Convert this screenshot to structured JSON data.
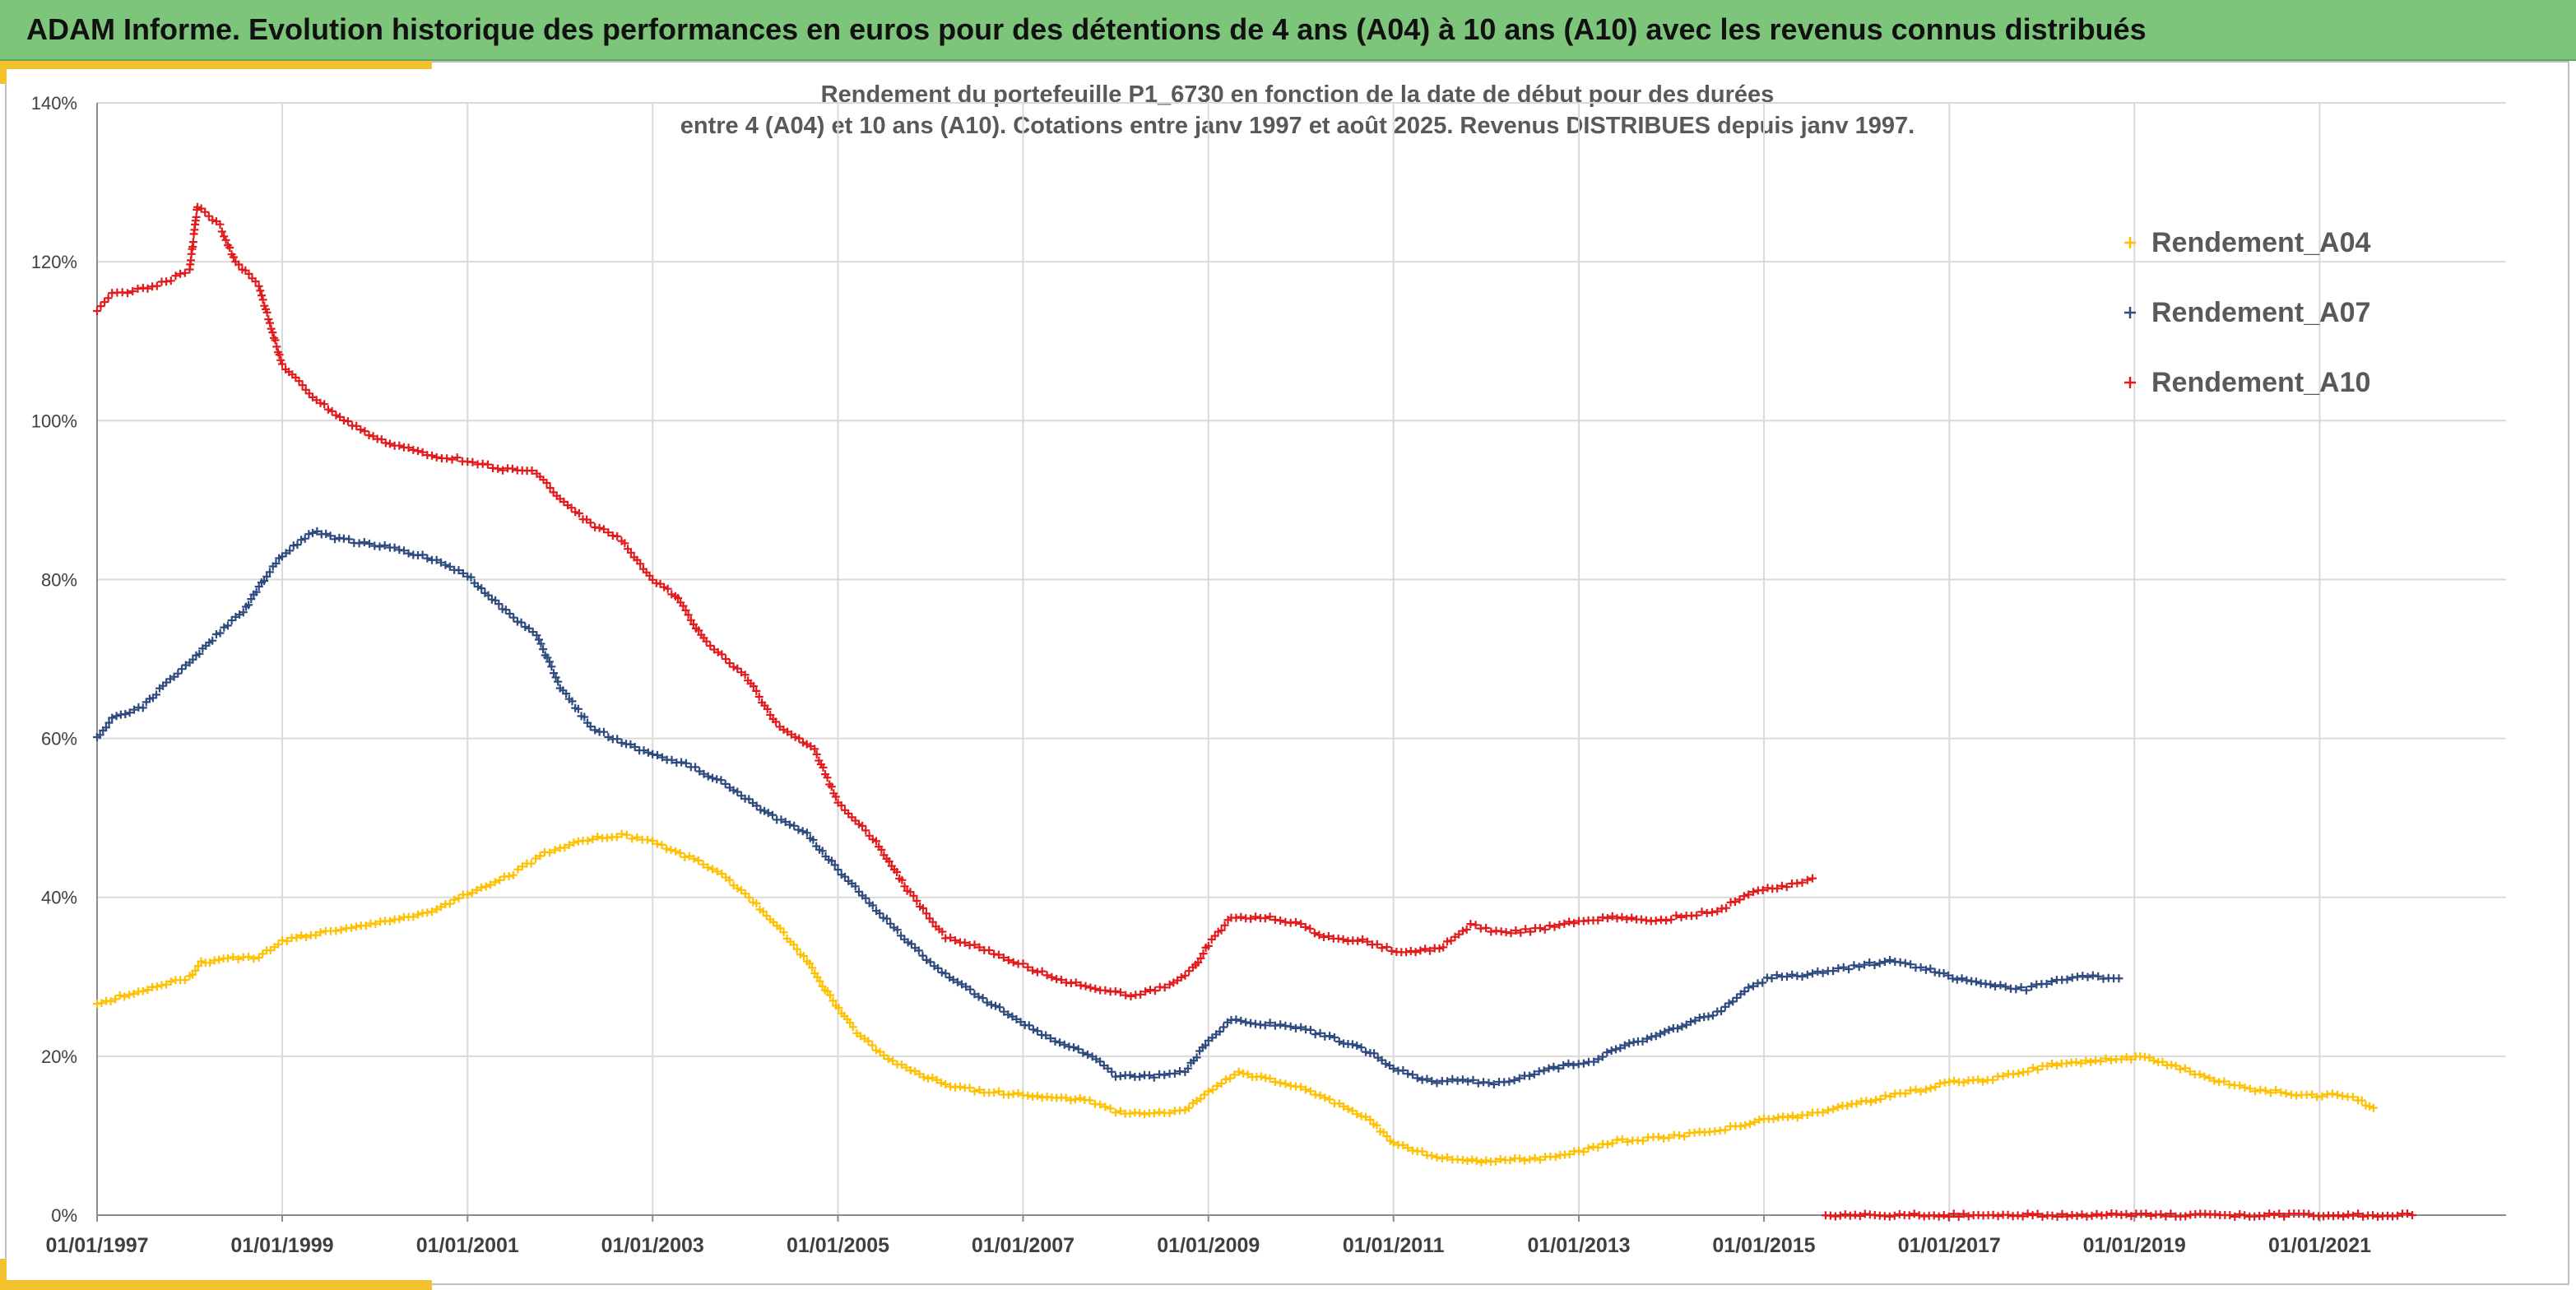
{
  "header": {
    "title": "ADAM Informe. Evolution historique des performances en euros pour des détentions de 4 ans (A04) à 10 ans (A10) avec les revenus connus distribués"
  },
  "colors": {
    "header_bg": "#7dc57a",
    "accent": "#f2c12e",
    "grid": "#d9d9d9",
    "axis": "#8c8c8c"
  },
  "chart_data": {
    "type": "scatter",
    "title_line1": "Rendement du portefeuille P1_6730 en fonction de la date de début pour des durées",
    "title_line2": "entre 4 (A04) et 10 ans (A10). Cotations entre janv 1997 et août 2025. Revenus DISTRIBUES depuis janv 1997.",
    "xlabel": "",
    "ylabel": "",
    "x_range": [
      "1997-01-01",
      "2022-01-01"
    ],
    "x_ticks": [
      "01/01/1997",
      "01/01/1999",
      "01/01/2001",
      "01/01/2003",
      "01/01/2005",
      "01/01/2007",
      "01/01/2009",
      "01/01/2011",
      "01/01/2013",
      "01/01/2015",
      "01/01/2017",
      "01/01/2019",
      "01/01/2021"
    ],
    "y_range": [
      0,
      140
    ],
    "y_ticks": [
      "0%",
      "20%",
      "40%",
      "60%",
      "80%",
      "100%",
      "120%",
      "140%"
    ],
    "grid": true,
    "legend_position": "top-right",
    "marker": "+",
    "series": [
      {
        "name": "Rendement_A04",
        "color": "#ffc000",
        "points": [
          [
            "1997-01-01",
            26.5
          ],
          [
            "1997-04-01",
            27.5
          ],
          [
            "1997-07-01",
            28.3
          ],
          [
            "1997-10-01",
            29.0
          ],
          [
            "1998-01-01",
            30.0
          ],
          [
            "1998-02-15",
            31.8
          ],
          [
            "1998-06-01",
            32.3
          ],
          [
            "1998-10-01",
            32.5
          ],
          [
            "1999-01-01",
            34.5
          ],
          [
            "1999-06-01",
            35.5
          ],
          [
            "1999-10-01",
            36.3
          ],
          [
            "2000-03-01",
            37.0
          ],
          [
            "2000-09-01",
            38.5
          ],
          [
            "2001-01-01",
            40.5
          ],
          [
            "2001-07-01",
            43.0
          ],
          [
            "2001-11-01",
            45.5
          ],
          [
            "2002-01-01",
            46.0
          ],
          [
            "2002-04-01",
            47.2
          ],
          [
            "2002-09-01",
            47.8
          ],
          [
            "2003-01-01",
            47.0
          ],
          [
            "2003-07-01",
            44.5
          ],
          [
            "2003-10-01",
            43.0
          ],
          [
            "2004-02-01",
            39.5
          ],
          [
            "2004-06-01",
            35.5
          ],
          [
            "2004-09-01",
            32.0
          ],
          [
            "2004-12-01",
            27.5
          ],
          [
            "2005-03-01",
            23.5
          ],
          [
            "2005-07-01",
            20.0
          ],
          [
            "2005-11-01",
            18.0
          ],
          [
            "2006-03-01",
            16.5
          ],
          [
            "2006-08-01",
            15.5
          ],
          [
            "2007-01-01",
            15.2
          ],
          [
            "2007-06-01",
            14.7
          ],
          [
            "2007-09-01",
            14.6
          ],
          [
            "2007-11-01",
            13.8
          ],
          [
            "2008-01-01",
            13.0
          ],
          [
            "2008-06-01",
            12.8
          ],
          [
            "2008-10-01",
            13.2
          ],
          [
            "2009-01-01",
            15.5
          ],
          [
            "2009-05-01",
            18.0
          ],
          [
            "2009-09-01",
            17.0
          ],
          [
            "2010-01-01",
            16.0
          ],
          [
            "2010-06-01",
            14.0
          ],
          [
            "2010-10-01",
            12.0
          ],
          [
            "2011-01-01",
            9.0
          ],
          [
            "2011-06-01",
            7.5
          ],
          [
            "2011-10-01",
            7.0
          ],
          [
            "2012-01-01",
            6.8
          ],
          [
            "2012-06-01",
            7.0
          ],
          [
            "2012-10-01",
            7.3
          ],
          [
            "2013-01-01",
            8.0
          ],
          [
            "2013-06-01",
            9.3
          ],
          [
            "2013-10-01",
            9.6
          ],
          [
            "2014-02-01",
            10.0
          ],
          [
            "2014-06-01",
            10.5
          ],
          [
            "2014-10-01",
            11.3
          ],
          [
            "2015-01-01",
            12.0
          ],
          [
            "2015-06-01",
            12.5
          ],
          [
            "2015-10-01",
            13.3
          ],
          [
            "2016-01-01",
            14.0
          ],
          [
            "2016-06-01",
            15.2
          ],
          [
            "2016-10-01",
            15.8
          ],
          [
            "2017-01-01",
            16.8
          ],
          [
            "2017-06-01",
            17.0
          ],
          [
            "2017-10-01",
            18.0
          ],
          [
            "2018-03-01",
            19.0
          ],
          [
            "2018-08-01",
            19.5
          ],
          [
            "2018-12-01",
            19.8
          ],
          [
            "2019-03-01",
            19.8
          ],
          [
            "2019-07-01",
            18.5
          ],
          [
            "2019-12-01",
            16.8
          ],
          [
            "2020-04-01",
            15.8
          ],
          [
            "2020-08-01",
            15.5
          ],
          [
            "2020-12-01",
            15.0
          ],
          [
            "2021-04-01",
            15.2
          ],
          [
            "2021-06-01",
            14.5
          ],
          [
            "2021-08-01",
            13.5
          ]
        ]
      },
      {
        "name": "Rendement_A07",
        "color": "#2f4a7e",
        "points": [
          [
            "1997-01-01",
            60.0
          ],
          [
            "1997-03-01",
            62.5
          ],
          [
            "1997-07-01",
            64.0
          ],
          [
            "1997-10-01",
            67.0
          ],
          [
            "1998-01-01",
            69.5
          ],
          [
            "1998-04-01",
            72.5
          ],
          [
            "1998-08-01",
            76.0
          ],
          [
            "1998-11-01",
            80.5
          ],
          [
            "1999-01-01",
            83.0
          ],
          [
            "1999-05-01",
            86.0
          ],
          [
            "1999-09-01",
            85.0
          ],
          [
            "2000-03-01",
            84.0
          ],
          [
            "2000-09-01",
            82.5
          ],
          [
            "2001-01-01",
            80.5
          ],
          [
            "2001-06-01",
            76.0
          ],
          [
            "2001-10-01",
            73.0
          ],
          [
            "2002-01-01",
            66.5
          ],
          [
            "2002-05-01",
            61.5
          ],
          [
            "2002-09-01",
            59.5
          ],
          [
            "2003-01-01",
            58.0
          ],
          [
            "2003-06-01",
            56.5
          ],
          [
            "2003-11-01",
            54.0
          ],
          [
            "2004-04-01",
            50.5
          ],
          [
            "2004-09-01",
            48.0
          ],
          [
            "2005-01-01",
            43.5
          ],
          [
            "2005-06-01",
            38.5
          ],
          [
            "2005-11-01",
            33.5
          ],
          [
            "2006-04-01",
            29.5
          ],
          [
            "2006-10-01",
            26.0
          ],
          [
            "2007-04-01",
            22.5
          ],
          [
            "2007-10-01",
            20.0
          ],
          [
            "2008-01-01",
            17.5
          ],
          [
            "2008-06-01",
            17.5
          ],
          [
            "2008-10-01",
            18.0
          ],
          [
            "2009-01-01",
            22.0
          ],
          [
            "2009-04-01",
            24.5
          ],
          [
            "2009-09-01",
            24.0
          ],
          [
            "2010-01-01",
            23.5
          ],
          [
            "2010-06-01",
            22.0
          ],
          [
            "2010-10-01",
            20.5
          ],
          [
            "2011-01-01",
            18.5
          ],
          [
            "2011-06-01",
            16.8
          ],
          [
            "2011-10-01",
            17.0
          ],
          [
            "2012-02-01",
            16.5
          ],
          [
            "2012-06-01",
            17.5
          ],
          [
            "2012-11-01",
            18.8
          ],
          [
            "2013-03-01",
            19.5
          ],
          [
            "2013-07-01",
            21.5
          ],
          [
            "2013-11-01",
            22.5
          ],
          [
            "2014-03-01",
            24.0
          ],
          [
            "2014-07-01",
            25.5
          ],
          [
            "2014-11-01",
            28.5
          ],
          [
            "2015-02-01",
            30.0
          ],
          [
            "2015-06-01",
            30.2
          ],
          [
            "2015-10-01",
            30.8
          ],
          [
            "2016-02-01",
            31.5
          ],
          [
            "2016-06-01",
            32.0
          ],
          [
            "2016-10-01",
            31.0
          ],
          [
            "2017-02-01",
            29.8
          ],
          [
            "2017-07-01",
            28.8
          ],
          [
            "2017-11-01",
            28.5
          ],
          [
            "2018-03-01",
            29.5
          ],
          [
            "2018-07-01",
            30.0
          ],
          [
            "2018-11-01",
            29.8
          ]
        ]
      },
      {
        "name": "Rendement_A10",
        "color": "#e31a1c",
        "points": [
          [
            "1997-01-01",
            114.0
          ],
          [
            "1997-03-01",
            116.0
          ],
          [
            "1997-07-01",
            116.5
          ],
          [
            "1997-10-01",
            117.5
          ],
          [
            "1998-01-01",
            119.0
          ],
          [
            "1998-02-01",
            127.0
          ],
          [
            "1998-05-01",
            124.5
          ],
          [
            "1998-07-01",
            120.0
          ],
          [
            "1998-10-01",
            117.0
          ],
          [
            "1999-01-01",
            107.0
          ],
          [
            "1999-05-01",
            103.0
          ],
          [
            "1999-09-01",
            100.0
          ],
          [
            "2000-03-01",
            97.0
          ],
          [
            "2000-09-01",
            95.5
          ],
          [
            "2001-01-01",
            95.0
          ],
          [
            "2001-05-01",
            94.0
          ],
          [
            "2001-10-01",
            93.5
          ],
          [
            "2002-01-01",
            90.0
          ],
          [
            "2002-05-01",
            87.0
          ],
          [
            "2002-09-01",
            85.0
          ],
          [
            "2003-01-01",
            80.0
          ],
          [
            "2003-04-01",
            78.0
          ],
          [
            "2003-08-01",
            72.0
          ],
          [
            "2004-01-01",
            68.0
          ],
          [
            "2004-05-01",
            62.0
          ],
          [
            "2004-10-01",
            58.5
          ],
          [
            "2005-01-01",
            52.0
          ],
          [
            "2005-06-01",
            47.0
          ],
          [
            "2005-10-01",
            41.0
          ],
          [
            "2006-03-01",
            35.0
          ],
          [
            "2006-08-01",
            33.5
          ],
          [
            "2007-01-01",
            31.5
          ],
          [
            "2007-06-01",
            29.5
          ],
          [
            "2007-11-01",
            28.5
          ],
          [
            "2008-03-01",
            27.5
          ],
          [
            "2008-08-01",
            29.0
          ],
          [
            "2008-11-01",
            31.0
          ],
          [
            "2009-01-01",
            34.0
          ],
          [
            "2009-04-01",
            37.5
          ],
          [
            "2009-09-01",
            37.5
          ],
          [
            "2010-01-01",
            36.5
          ],
          [
            "2010-04-01",
            35.0
          ],
          [
            "2010-09-01",
            34.5
          ],
          [
            "2011-02-01",
            33.0
          ],
          [
            "2011-07-01",
            33.5
          ],
          [
            "2011-11-01",
            36.5
          ],
          [
            "2012-03-01",
            35.5
          ],
          [
            "2012-08-01",
            36.0
          ],
          [
            "2013-01-01",
            37.0
          ],
          [
            "2013-06-01",
            37.5
          ],
          [
            "2013-11-01",
            37.0
          ],
          [
            "2014-03-01",
            37.8
          ],
          [
            "2014-07-01",
            38.2
          ],
          [
            "2014-11-01",
            40.5
          ],
          [
            "2015-04-01",
            41.5
          ],
          [
            "2015-08-01",
            42.5
          ],
          [
            "2015-09-01",
            0.0
          ],
          [
            "2022-01-01",
            0.0
          ]
        ]
      }
    ]
  }
}
